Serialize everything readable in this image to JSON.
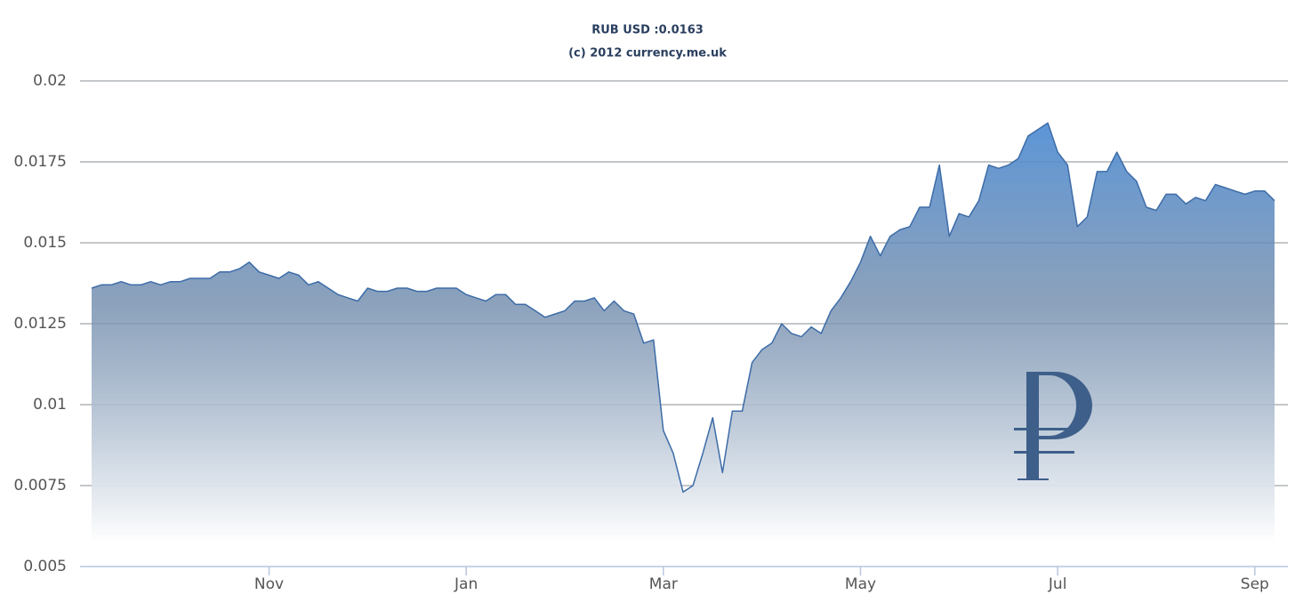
{
  "chart_data": {
    "type": "area",
    "title": "RUB USD :0.0163",
    "subtitle": "(c) 2012 currency.me.uk",
    "categories": [
      null,
      null,
      null,
      null,
      null,
      null,
      null,
      null,
      null,
      null,
      null,
      null,
      null,
      null,
      null,
      null,
      null,
      null,
      "Nov",
      null,
      null,
      null,
      null,
      null,
      null,
      null,
      null,
      null,
      null,
      null,
      null,
      null,
      null,
      null,
      null,
      null,
      null,
      null,
      "Jan",
      null,
      null,
      null,
      null,
      null,
      null,
      null,
      null,
      null,
      null,
      null,
      null,
      null,
      null,
      null,
      null,
      null,
      null,
      null,
      "Mar",
      null,
      null,
      null,
      null,
      null,
      null,
      null,
      null,
      null,
      null,
      null,
      null,
      null,
      null,
      null,
      null,
      null,
      null,
      null,
      "May",
      null,
      null,
      null,
      null,
      null,
      null,
      null,
      null,
      null,
      null,
      null,
      null,
      null,
      null,
      null,
      null,
      null,
      null,
      null,
      "Jul",
      null,
      null,
      null,
      null,
      null,
      null,
      null,
      null,
      null,
      null,
      null,
      null,
      null,
      null,
      null,
      null,
      null,
      null,
      null,
      "Sep",
      null,
      null
    ],
    "values": [
      0.0136,
      0.0137,
      0.0137,
      0.0138,
      0.0137,
      0.0137,
      0.0138,
      0.0137,
      0.0138,
      0.0138,
      0.0139,
      0.0139,
      0.0139,
      0.0141,
      0.0141,
      0.0142,
      0.0144,
      0.0141,
      0.014,
      0.0139,
      0.0141,
      0.014,
      0.0137,
      0.0138,
      0.0136,
      0.0134,
      0.0133,
      0.0132,
      0.0136,
      0.0135,
      0.0135,
      0.0136,
      0.0136,
      0.0135,
      0.0135,
      0.0136,
      0.0136,
      0.0136,
      0.0134,
      0.0133,
      0.0132,
      0.0134,
      0.0134,
      0.0131,
      0.0131,
      0.0129,
      0.0127,
      0.0128,
      0.0129,
      0.0132,
      0.0132,
      0.0133,
      0.0129,
      0.0132,
      0.0129,
      0.0128,
      0.0119,
      0.012,
      0.0092,
      0.0085,
      0.0073,
      0.0075,
      0.0085,
      0.0096,
      0.0079,
      0.0098,
      0.0098,
      0.0113,
      0.0117,
      0.0119,
      0.0125,
      0.0122,
      0.0121,
      0.0124,
      0.0122,
      0.0129,
      0.0133,
      0.0138,
      0.0144,
      0.0152,
      0.0146,
      0.0152,
      0.0154,
      0.0155,
      0.0161,
      0.0161,
      0.0174,
      0.0152,
      0.0159,
      0.0158,
      0.0163,
      0.0174,
      0.0173,
      0.0174,
      0.0176,
      0.0183,
      0.0185,
      0.0187,
      0.0178,
      0.0174,
      0.0155,
      0.0158,
      0.0172,
      0.0172,
      0.0178,
      0.0172,
      0.0169,
      0.0161,
      0.016,
      0.0165,
      0.0165,
      0.0162,
      0.0164,
      0.0163,
      0.0168,
      0.0167,
      0.0166,
      0.0165,
      0.0166,
      0.0166,
      0.0163
    ],
    "color": "#3d6ca8",
    "ylim": [
      0.005,
      0.02
    ],
    "yticks": [
      0.005,
      0.0075,
      0.01,
      0.0125,
      0.015,
      0.0175,
      0.02
    ],
    "grid": true
  }
}
